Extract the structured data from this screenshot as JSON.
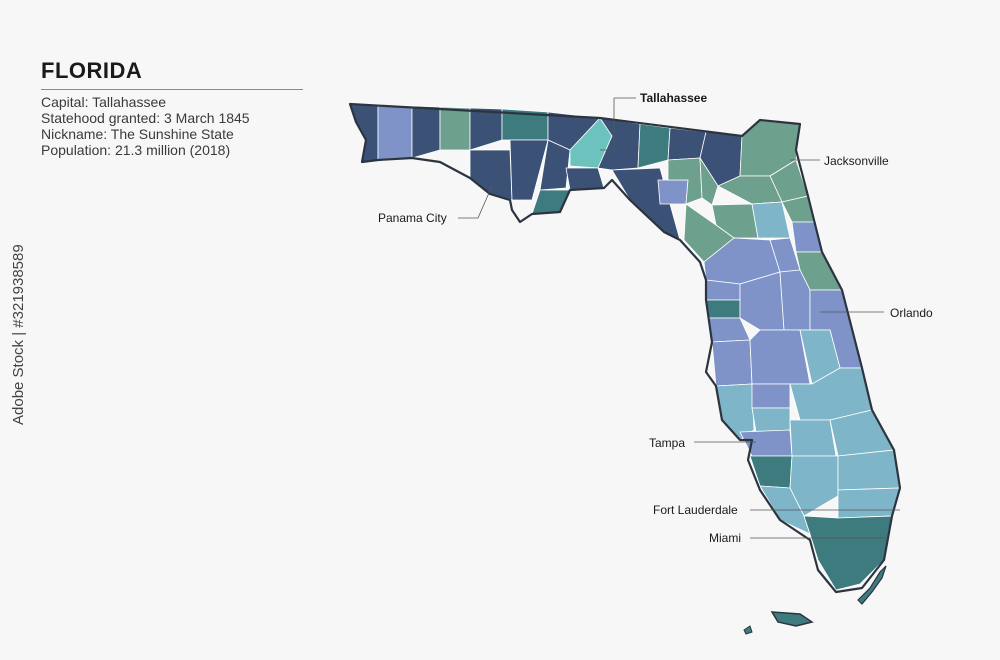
{
  "title": "FLORIDA",
  "facts": [
    "Capital: Tallahassee",
    "Statehood granted: 3 March 1845",
    "Nickname: The Sunshine State",
    "Population: 21.3 million (2018)"
  ],
  "cities": {
    "tallahassee": "Tallahassee",
    "jacksonville": "Jacksonville",
    "panama_city": "Panama City",
    "orlando": "Orlando",
    "tampa": "Tampa",
    "fort_lauderdale": "Fort Lauderdale",
    "miami": "Miami"
  },
  "credit": "Adobe Stock | #321938589",
  "colors": {
    "navy": "#3b5276",
    "periwinkle": "#7f93c8",
    "sage": "#6ea08e",
    "teal_dark": "#3e7b7f",
    "light_blue": "#7fb5c9",
    "aqua": "#6cc2bd",
    "border": "#2c3440",
    "background": "#f7f7f7"
  }
}
